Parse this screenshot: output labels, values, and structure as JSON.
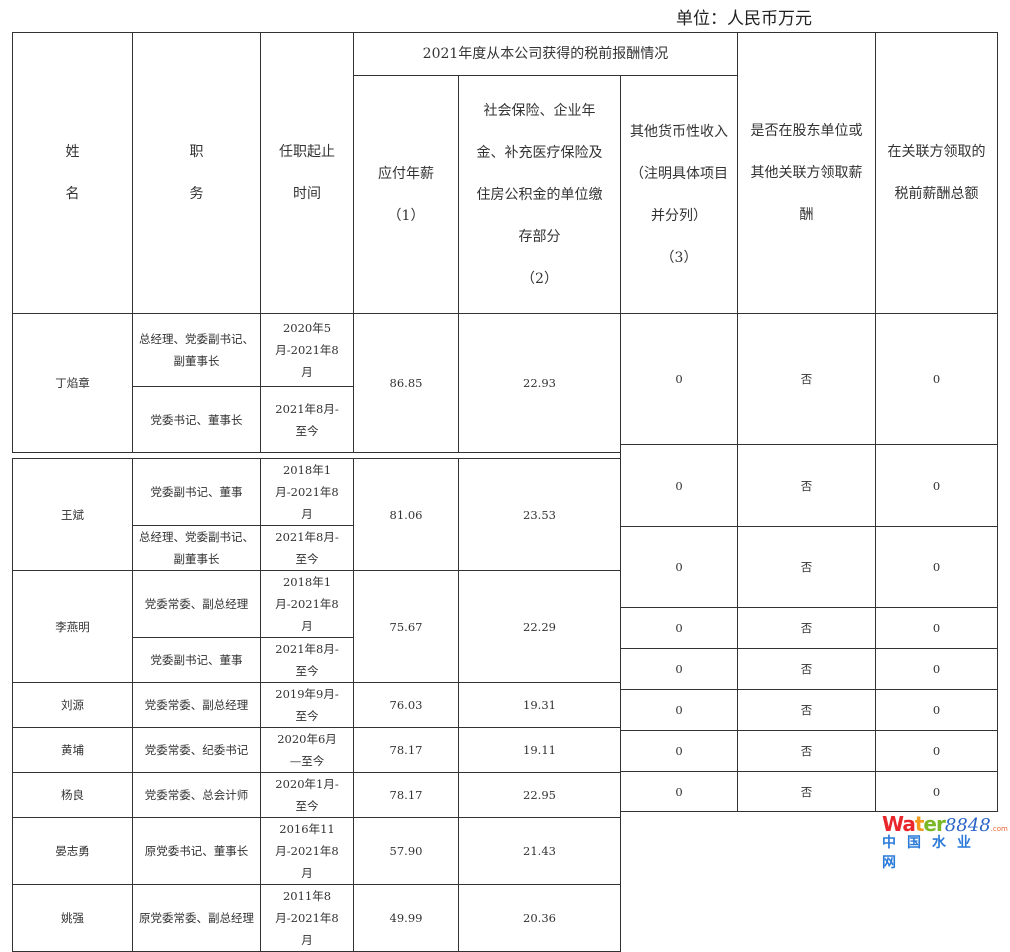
{
  "unit_label": "单位：人民币万元",
  "header": {
    "name": "姓\n名",
    "position": "职\n务",
    "term": "任职起止时间",
    "group": "2021年度从本公司获得的税前报酬情况",
    "salary": "应付年薪\n（1）",
    "insurance": "社会保险、企业年金、补充医疗保险及住房公积金的单位缴存部分\n（2）",
    "other": "其他货币性收入（注明具体项目并分列）\n（3）",
    "shareholder": "是否在股东单位或其他关联方领取薪酬",
    "related_total": "在关联方领取的税前薪酬总额"
  },
  "rows": [
    {
      "name": "丁焰章",
      "roles": [
        {
          "position": "总经理、党委副书记、副董事长",
          "term": "2020年5月-2021年8月"
        },
        {
          "position": "党委书记、董事长",
          "term": "2021年8月-至今"
        }
      ],
      "salary": "86.85",
      "insurance": "22.93",
      "other": "0",
      "shareholder": "否",
      "related_total": "0"
    },
    {
      "name": "王斌",
      "roles": [
        {
          "position": "党委副书记、董事",
          "term": "2018年1月-2021年8月"
        },
        {
          "position": "总经理、党委副书记、副董事长",
          "term": "2021年8月-至今"
        }
      ],
      "salary": "81.06",
      "insurance": "23.53",
      "other": "0",
      "shareholder": "否",
      "related_total": "0"
    },
    {
      "name": "李燕明",
      "roles": [
        {
          "position": "党委常委、副总经理",
          "term": "2018年1月-2021年8月"
        },
        {
          "position": "党委副书记、董事",
          "term": "2021年8月-至今"
        }
      ],
      "salary": "75.67",
      "insurance": "22.29",
      "other": "0",
      "shareholder": "否",
      "related_total": "0"
    },
    {
      "name": "刘源",
      "roles": [
        {
          "position": "党委常委、副总经理",
          "term": "2019年9月-至今"
        }
      ],
      "salary": "76.03",
      "insurance": "19.31",
      "other": "0",
      "shareholder": "否",
      "related_total": "0"
    },
    {
      "name": "黄埔",
      "roles": [
        {
          "position": "党委常委、纪委书记",
          "term": "2020年6月—至今"
        }
      ],
      "salary": "78.17",
      "insurance": "19.11",
      "other": "0",
      "shareholder": "否",
      "related_total": "0"
    },
    {
      "name": "杨良",
      "roles": [
        {
          "position": "党委常委、总会计师",
          "term": "2020年1月-至今"
        }
      ],
      "salary": "78.17",
      "insurance": "22.95",
      "other": "0",
      "shareholder": "否",
      "related_total": "0"
    },
    {
      "name": "晏志勇",
      "roles": [
        {
          "position": "原党委书记、董事长",
          "term": "2016年11月-2021年8月"
        }
      ],
      "salary": "57.90",
      "insurance": "21.43",
      "other": "0",
      "shareholder": "否",
      "related_total": "0"
    },
    {
      "name": "姚强",
      "roles": [
        {
          "position": "原党委常委、副总经理",
          "term": "2011年8月-2021年8月"
        }
      ],
      "salary": "49.99",
      "insurance": "20.36",
      "other": "0",
      "shareholder": "否",
      "related_total": "0"
    }
  ],
  "watermark": {
    "brand": "Water8848.com",
    "subtitle": "中国水业网",
    "colors": [
      "#e8262b",
      "#f29b1d",
      "#7ab828",
      "#2a63c8"
    ]
  }
}
